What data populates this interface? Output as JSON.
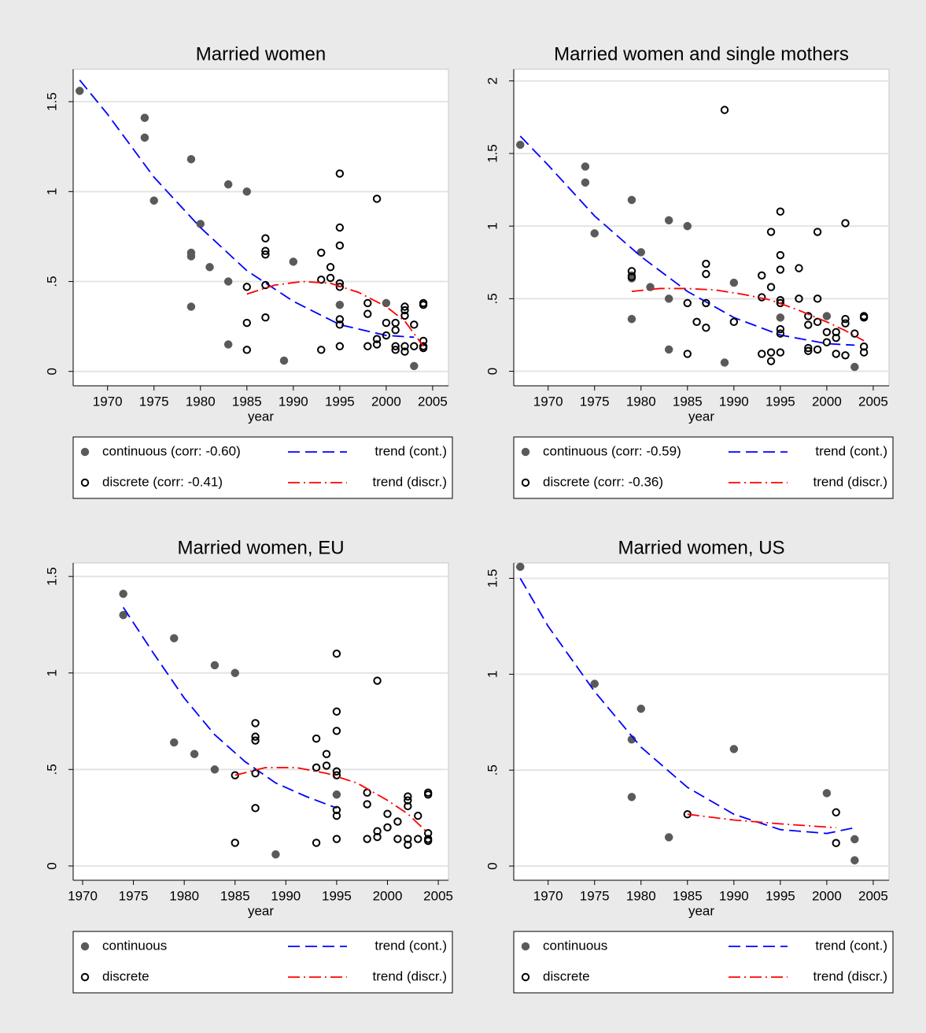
{
  "chart_data": [
    {
      "type": "scatter",
      "title": "Married women",
      "x_label": "year",
      "xlim": [
        1966.3,
        2006.7
      ],
      "ylim": [
        -0.08,
        1.68
      ],
      "grid": true,
      "xticks": [
        1970,
        1975,
        1980,
        1985,
        1990,
        1995,
        2000,
        2005
      ],
      "yticks": [
        0,
        {
          "value": 0.5,
          "label": ".5"
        },
        1,
        1.5
      ],
      "series": [
        {
          "name": "continuous (corr: -0.60)",
          "mode": "filled",
          "color": "#5a5a5a",
          "x": [
            1967,
            1974,
            1974,
            1975,
            1979,
            1979,
            1979,
            1979,
            1980,
            1981,
            1983,
            1983,
            1983,
            1985,
            1989,
            1990,
            1995,
            2000,
            2003
          ],
          "values": [
            1.56,
            1.41,
            1.3,
            0.95,
            1.18,
            0.66,
            0.64,
            0.36,
            0.82,
            0.58,
            1.04,
            0.5,
            0.15,
            1.0,
            0.06,
            0.61,
            0.37,
            0.38,
            0.03
          ]
        },
        {
          "name": "trend (cont.)",
          "mode": "dash",
          "color": "#0000ff",
          "x": [
            1967,
            1970,
            1975,
            1980,
            1985,
            1990,
            1995,
            2000,
            2003
          ],
          "values": [
            1.62,
            1.43,
            1.08,
            0.8,
            0.56,
            0.39,
            0.26,
            0.2,
            0.19
          ]
        },
        {
          "name": "discrete (corr: -0.41)",
          "mode": "hollow",
          "color": "#000000",
          "x": [
            1985,
            1985,
            1985,
            1987,
            1987,
            1987,
            1987,
            1987,
            1993,
            1993,
            1993,
            1994,
            1994,
            1995,
            1995,
            1995,
            1995,
            1995,
            1995,
            1995,
            1995,
            1998,
            1998,
            1998,
            1999,
            1999,
            1999,
            2000,
            2000,
            2001,
            2001,
            2001,
            2001,
            2002,
            2002,
            2002,
            2002,
            2002,
            2003,
            2003,
            2004,
            2004,
            2004,
            2004,
            2004
          ],
          "values": [
            0.47,
            0.27,
            0.12,
            0.74,
            0.67,
            0.65,
            0.48,
            0.3,
            0.66,
            0.51,
            0.12,
            0.58,
            0.52,
            1.1,
            0.8,
            0.7,
            0.49,
            0.47,
            0.29,
            0.26,
            0.14,
            0.38,
            0.32,
            0.14,
            0.96,
            0.18,
            0.15,
            0.27,
            0.2,
            0.27,
            0.23,
            0.14,
            0.12,
            0.36,
            0.34,
            0.31,
            0.14,
            0.11,
            0.26,
            0.14,
            0.38,
            0.37,
            0.17,
            0.14,
            0.13
          ]
        },
        {
          "name": "trend (discr.)",
          "mode": "dashdot",
          "color": "#ff0000",
          "x": [
            1985,
            1988,
            1991,
            1994,
            1997,
            2000,
            2002,
            2004
          ],
          "values": [
            0.43,
            0.48,
            0.5,
            0.49,
            0.44,
            0.36,
            0.28,
            0.14
          ]
        }
      ]
    },
    {
      "type": "scatter",
      "title": "Married women and single mothers",
      "x_label": "year",
      "xlim": [
        1966.3,
        2006.7
      ],
      "ylim": [
        -0.1,
        2.08
      ],
      "grid": true,
      "xticks": [
        1970,
        1975,
        1980,
        1985,
        1990,
        1995,
        2000,
        2005
      ],
      "yticks": [
        0,
        {
          "value": 0.5,
          "label": ".5"
        },
        1,
        1.5,
        2
      ],
      "series": [
        {
          "name": "continuous (corr: -0.59)",
          "mode": "filled",
          "color": "#5a5a5a",
          "x": [
            1967,
            1974,
            1974,
            1975,
            1979,
            1979,
            1979,
            1979,
            1980,
            1981,
            1983,
            1983,
            1983,
            1985,
            1989,
            1990,
            1995,
            2000,
            2003
          ],
          "values": [
            1.56,
            1.41,
            1.3,
            0.95,
            1.18,
            0.66,
            0.64,
            0.36,
            0.82,
            0.58,
            1.04,
            0.5,
            0.15,
            1.0,
            0.06,
            0.61,
            0.37,
            0.38,
            0.03
          ]
        },
        {
          "name": "trend (cont.)",
          "mode": "dash",
          "color": "#0000ff",
          "x": [
            1967,
            1970,
            1975,
            1980,
            1985,
            1990,
            1995,
            2000,
            2003
          ],
          "values": [
            1.62,
            1.42,
            1.07,
            0.79,
            0.55,
            0.37,
            0.25,
            0.19,
            0.18
          ]
        },
        {
          "name": "discrete (corr: -0.36)",
          "mode": "hollow",
          "color": "#000000",
          "x": [
            1979,
            1979,
            1985,
            1985,
            1986,
            1987,
            1987,
            1987,
            1987,
            1989,
            1990,
            1993,
            1993,
            1993,
            1994,
            1994,
            1994,
            1994,
            1995,
            1995,
            1995,
            1995,
            1995,
            1995,
            1995,
            1995,
            1997,
            1997,
            1998,
            1998,
            1998,
            1998,
            1999,
            1999,
            1999,
            1999,
            2000,
            2000,
            2001,
            2001,
            2001,
            2002,
            2002,
            2002,
            2002,
            2003,
            2004,
            2004,
            2004,
            2004
          ],
          "values": [
            0.69,
            0.65,
            0.47,
            0.12,
            0.34,
            0.74,
            0.67,
            0.47,
            0.3,
            1.8,
            0.34,
            0.66,
            0.51,
            0.12,
            0.96,
            0.58,
            0.13,
            0.07,
            1.1,
            0.8,
            0.7,
            0.49,
            0.47,
            0.29,
            0.26,
            0.13,
            0.71,
            0.5,
            0.38,
            0.32,
            0.16,
            0.14,
            0.96,
            0.5,
            0.34,
            0.15,
            0.27,
            0.2,
            0.27,
            0.23,
            0.12,
            1.02,
            0.36,
            0.33,
            0.11,
            0.26,
            0.38,
            0.37,
            0.17,
            0.13
          ]
        },
        {
          "name": "trend (discr.)",
          "mode": "dashdot",
          "color": "#ff0000",
          "x": [
            1979,
            1982,
            1985,
            1988,
            1991,
            1994,
            1997,
            2000,
            2002,
            2004
          ],
          "values": [
            0.55,
            0.57,
            0.57,
            0.56,
            0.53,
            0.49,
            0.42,
            0.34,
            0.28,
            0.21
          ]
        }
      ]
    },
    {
      "type": "scatter",
      "title": "Married women, EU",
      "x_label": "year",
      "xlim": [
        1969.07,
        2006.0
      ],
      "ylim": [
        -0.074,
        1.57
      ],
      "grid": true,
      "xticks": [
        1970,
        1975,
        1980,
        1985,
        1990,
        1995,
        2000,
        2005
      ],
      "yticks": [
        0,
        {
          "value": 0.5,
          "label": ".5"
        },
        1,
        1.5
      ],
      "series": [
        {
          "name": "continuous",
          "mode": "filled",
          "color": "#5a5a5a",
          "x": [
            1974,
            1974,
            1979,
            1979,
            1981,
            1983,
            1983,
            1985,
            1989,
            1995
          ],
          "values": [
            1.41,
            1.3,
            1.18,
            0.64,
            0.58,
            1.04,
            0.5,
            1.0,
            0.06,
            0.37
          ]
        },
        {
          "name": "trend (cont.)",
          "mode": "dash",
          "color": "#0000ff",
          "x": [
            1974,
            1977,
            1980,
            1983,
            1986,
            1989,
            1992,
            1995
          ],
          "values": [
            1.34,
            1.1,
            0.87,
            0.68,
            0.54,
            0.43,
            0.36,
            0.3
          ]
        },
        {
          "name": "discrete",
          "mode": "hollow",
          "color": "#000000",
          "x": [
            1985,
            1985,
            1987,
            1987,
            1987,
            1987,
            1987,
            1993,
            1993,
            1993,
            1994,
            1994,
            1995,
            1995,
            1995,
            1995,
            1995,
            1995,
            1995,
            1995,
            1998,
            1998,
            1998,
            1999,
            1999,
            1999,
            2000,
            2000,
            2001,
            2001,
            2002,
            2002,
            2002,
            2002,
            2002,
            2003,
            2003,
            2004,
            2004,
            2004,
            2004,
            2004
          ],
          "values": [
            0.47,
            0.12,
            0.74,
            0.67,
            0.65,
            0.48,
            0.3,
            0.66,
            0.51,
            0.12,
            0.58,
            0.52,
            1.1,
            0.8,
            0.7,
            0.49,
            0.47,
            0.29,
            0.26,
            0.14,
            0.38,
            0.32,
            0.14,
            0.96,
            0.18,
            0.15,
            0.27,
            0.2,
            0.23,
            0.14,
            0.36,
            0.34,
            0.31,
            0.14,
            0.11,
            0.26,
            0.14,
            0.38,
            0.37,
            0.17,
            0.14,
            0.13
          ]
        },
        {
          "name": "trend (discr.)",
          "mode": "dashdot",
          "color": "#ff0000",
          "x": [
            1985,
            1988,
            1991,
            1994,
            1997,
            2000,
            2002,
            2004
          ],
          "values": [
            0.47,
            0.51,
            0.51,
            0.48,
            0.43,
            0.34,
            0.27,
            0.17
          ]
        }
      ]
    },
    {
      "type": "scatter",
      "title": "Married women, US",
      "x_label": "year",
      "xlim": [
        1966.3,
        2006.7
      ],
      "ylim": [
        -0.074,
        1.58
      ],
      "grid": true,
      "xticks": [
        1970,
        1975,
        1980,
        1985,
        1990,
        1995,
        2000,
        2005
      ],
      "yticks": [
        0,
        {
          "value": 0.5,
          "label": ".5"
        },
        1,
        1.5
      ],
      "series": [
        {
          "name": "continuous",
          "mode": "filled",
          "color": "#5a5a5a",
          "x": [
            1967,
            1975,
            1979,
            1979,
            1980,
            1983,
            1990,
            2000,
            2003,
            2003
          ],
          "values": [
            1.56,
            0.95,
            0.66,
            0.36,
            0.82,
            0.15,
            0.61,
            0.38,
            0.14,
            0.03
          ]
        },
        {
          "name": "trend (cont.)",
          "mode": "dash",
          "color": "#0000ff",
          "x": [
            1967,
            1970,
            1975,
            1980,
            1985,
            1990,
            1995,
            2000,
            2003
          ],
          "values": [
            1.5,
            1.25,
            0.91,
            0.62,
            0.41,
            0.27,
            0.19,
            0.17,
            0.2
          ]
        },
        {
          "name": "discrete",
          "mode": "hollow",
          "color": "#000000",
          "x": [
            1985,
            2001,
            2001
          ],
          "values": [
            0.27,
            0.28,
            0.12
          ]
        },
        {
          "name": "trend (discr.)",
          "mode": "dashdot",
          "color": "#ff0000",
          "x": [
            1985,
            1990,
            1995,
            2001
          ],
          "values": [
            0.27,
            0.24,
            0.22,
            0.2
          ]
        }
      ]
    }
  ]
}
